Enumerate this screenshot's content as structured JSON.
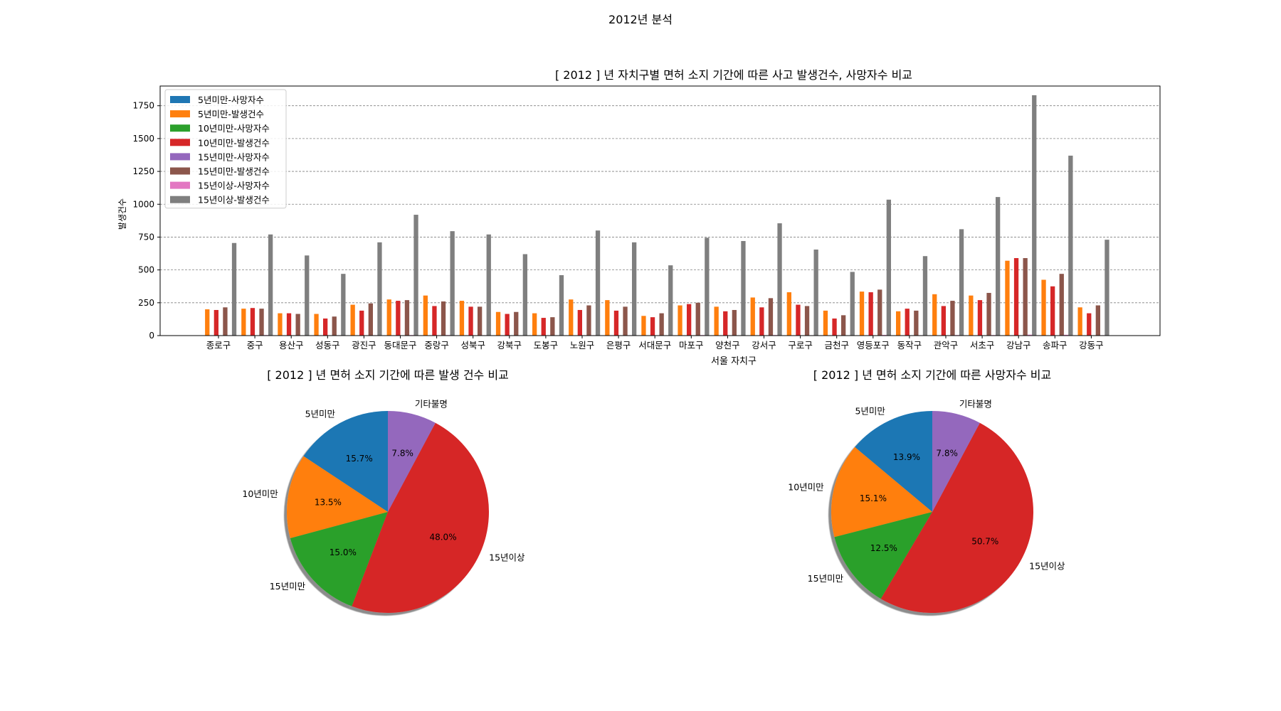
{
  "figure": {
    "suptitle": "2012년 분석"
  },
  "colors": {
    "blue": "#1f77b4",
    "orange": "#ff7f0e",
    "green": "#2ca02c",
    "red": "#d62728",
    "purple": "#9467bd",
    "brown": "#8c564b",
    "pink": "#e377c2",
    "gray": "#7f7f7f"
  },
  "chart_data": [
    {
      "type": "bar",
      "title": "[ 2012 ] 년 자치구별 면허 소지 기간에 따른 사고 발생건수, 사망자수 비교",
      "xlabel": "서울 자치구",
      "ylabel": "발생건수",
      "ylim": [
        0,
        1900
      ],
      "yticks": [
        0,
        250,
        500,
        750,
        1000,
        1250,
        1500,
        1750
      ],
      "grid": "y, dashed",
      "legend_position": "upper-left",
      "categories": [
        "종로구",
        "중구",
        "용산구",
        "성동구",
        "광진구",
        "동대문구",
        "중랑구",
        "성북구",
        "강북구",
        "도봉구",
        "노원구",
        "은평구",
        "서대문구",
        "마포구",
        "양천구",
        "강서구",
        "구로구",
        "금천구",
        "영등포구",
        "동작구",
        "관악구",
        "서초구",
        "강남구",
        "송파구",
        "강동구"
      ],
      "series": [
        {
          "name": "5년미만-사망자수",
          "color": "#1f77b4",
          "values": [
            0,
            0,
            0,
            0,
            0,
            0,
            0,
            0,
            0,
            0,
            0,
            0,
            0,
            0,
            0,
            0,
            0,
            0,
            0,
            0,
            0,
            0,
            0,
            0,
            0
          ]
        },
        {
          "name": "5년미만-발생건수",
          "color": "#ff7f0e",
          "values": [
            200,
            205,
            170,
            165,
            235,
            275,
            305,
            265,
            180,
            170,
            275,
            270,
            150,
            230,
            220,
            290,
            330,
            190,
            335,
            185,
            315,
            305,
            570,
            425,
            215
          ]
        },
        {
          "name": "10년미만-사망자수",
          "color": "#2ca02c",
          "values": [
            1,
            1,
            0,
            0,
            1,
            1,
            1,
            1,
            0,
            0,
            1,
            1,
            0,
            1,
            0,
            1,
            1,
            0,
            1,
            0,
            1,
            1,
            2,
            1,
            0
          ]
        },
        {
          "name": "10년미만-발생건수",
          "color": "#d62728",
          "values": [
            195,
            210,
            170,
            130,
            190,
            265,
            225,
            220,
            165,
            135,
            195,
            190,
            140,
            240,
            185,
            215,
            235,
            130,
            330,
            205,
            225,
            270,
            590,
            375,
            170
          ]
        },
        {
          "name": "15년미만-사망자수",
          "color": "#9467bd",
          "values": [
            0,
            0,
            0,
            0,
            0,
            0,
            0,
            0,
            0,
            0,
            0,
            0,
            0,
            0,
            0,
            0,
            0,
            0,
            0,
            0,
            0,
            0,
            0,
            0,
            0
          ]
        },
        {
          "name": "15년미만-발생건수",
          "color": "#8c564b",
          "values": [
            215,
            205,
            165,
            145,
            245,
            270,
            260,
            220,
            180,
            140,
            230,
            220,
            170,
            250,
            195,
            285,
            225,
            155,
            350,
            190,
            265,
            325,
            590,
            470,
            230
          ]
        },
        {
          "name": "15년이상-사망자수",
          "color": "#e377c2",
          "values": [
            3,
            4,
            2,
            3,
            3,
            4,
            4,
            3,
            2,
            2,
            3,
            3,
            2,
            4,
            2,
            4,
            3,
            2,
            5,
            3,
            4,
            4,
            7,
            6,
            3
          ]
        },
        {
          "name": "15년이상-발생건수",
          "color": "#7f7f7f",
          "values": [
            705,
            770,
            610,
            470,
            710,
            920,
            795,
            770,
            620,
            460,
            800,
            710,
            535,
            745,
            720,
            855,
            655,
            485,
            1035,
            605,
            810,
            1055,
            1830,
            1370,
            730
          ]
        }
      ]
    },
    {
      "type": "pie",
      "title": "[ 2012 ] 년 면허 소지 기간에 따른 발생 건수 비교",
      "slices": [
        {
          "label": "5년미만",
          "percent": 15.7,
          "color": "#1f77b4"
        },
        {
          "label": "10년미만",
          "percent": 13.5,
          "color": "#ff7f0e"
        },
        {
          "label": "15년미만",
          "percent": 15.0,
          "color": "#2ca02c"
        },
        {
          "label": "15년이상",
          "percent": 48.0,
          "color": "#d62728"
        },
        {
          "label": "기타불명",
          "percent": 7.8,
          "color": "#9467bd"
        }
      ]
    },
    {
      "type": "pie",
      "title": "[ 2012 ] 년 면허 소지 기간에 따른 사망자수 비교",
      "slices": [
        {
          "label": "5년미만",
          "percent": 13.9,
          "color": "#1f77b4"
        },
        {
          "label": "10년미만",
          "percent": 15.1,
          "color": "#ff7f0e"
        },
        {
          "label": "15년미만",
          "percent": 12.5,
          "color": "#2ca02c"
        },
        {
          "label": "15년이상",
          "percent": 50.7,
          "color": "#d62728"
        },
        {
          "label": "기타불명",
          "percent": 7.8,
          "color": "#9467bd"
        }
      ]
    }
  ]
}
